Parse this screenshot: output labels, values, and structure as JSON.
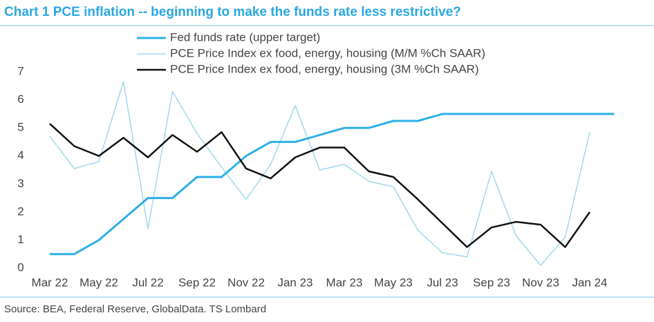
{
  "chart_data": {
    "type": "line",
    "title": "Chart 1 PCE inflation -- beginning to make the funds rate less restrictive?",
    "source": "Source: BEA, Federal Reserve, GlobalData. TS Lombard",
    "categories": [
      "Mar 22",
      null,
      "May 22",
      null,
      "Jul 22",
      null,
      "Sep 22",
      null,
      "Nov 22",
      null,
      "Jan 23",
      null,
      "Mar 23",
      null,
      "May 23",
      null,
      "Jul 23",
      null,
      "Sep 23",
      null,
      "Nov 23",
      null,
      "Jan 24",
      null
    ],
    "series": [
      {
        "name": "Fed funds rate (upper target)",
        "color": "#2bb0e6",
        "values": [
          0.5,
          0.5,
          1.0,
          1.75,
          2.5,
          2.5,
          3.25,
          3.25,
          4.0,
          4.5,
          4.5,
          4.75,
          5.0,
          5.0,
          5.25,
          5.25,
          5.5,
          5.5,
          5.5,
          5.5,
          5.5,
          5.5,
          5.5,
          5.5
        ]
      },
      {
        "name": "PCE Price Index ex food, energy, housing (M/M %Ch SAAR)",
        "color": "#9fd8f0",
        "values": [
          4.7,
          3.55,
          3.8,
          6.65,
          1.4,
          6.3,
          4.8,
          3.6,
          2.45,
          3.7,
          5.8,
          3.5,
          3.7,
          3.1,
          2.9,
          1.35,
          0.55,
          0.4,
          3.45,
          1.15,
          0.1,
          1.1,
          4.85,
          null
        ]
      },
      {
        "name": "PCE Price Index ex food, energy, housing (3M %Ch SAAR)",
        "color": "#111111",
        "values": [
          5.15,
          4.35,
          4.0,
          4.65,
          3.95,
          4.75,
          4.15,
          4.85,
          3.55,
          3.2,
          3.95,
          4.3,
          4.3,
          3.45,
          3.25,
          2.45,
          1.6,
          0.75,
          1.45,
          1.65,
          1.55,
          0.75,
          2.0,
          null
        ]
      }
    ],
    "ylim": [
      0,
      7
    ],
    "yticks": [
      0,
      1,
      2,
      3,
      4,
      5,
      6,
      7
    ],
    "grid": false
  }
}
